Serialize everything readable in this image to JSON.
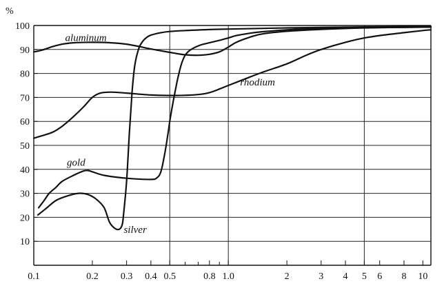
{
  "chart_data": {
    "type": "line",
    "title": "",
    "xlabel": "",
    "ylabel": "%",
    "x_scale": "log",
    "xlim": [
      0.1,
      11
    ],
    "ylim": [
      0,
      100
    ],
    "grid": {
      "horizontal": true,
      "vertical_at": [
        0.5,
        1.0,
        5
      ]
    },
    "x_ticks": [
      {
        "value": 0.1,
        "label": "0.1"
      },
      {
        "value": 0.2,
        "label": "0.2"
      },
      {
        "value": 0.3,
        "label": "0.3"
      },
      {
        "value": 0.4,
        "label": "0.4"
      },
      {
        "value": 0.5,
        "label": "0.5"
      },
      {
        "value": 0.8,
        "label": "0.8"
      },
      {
        "value": 1.0,
        "label": "1.0"
      },
      {
        "value": 2,
        "label": "2"
      },
      {
        "value": 3,
        "label": "3"
      },
      {
        "value": 4,
        "label": "4"
      },
      {
        "value": 5,
        "label": "5"
      },
      {
        "value": 6,
        "label": "6"
      },
      {
        "value": 8,
        "label": "8"
      },
      {
        "value": 10,
        "label": "10"
      }
    ],
    "x_minor_ticks": [
      0.6,
      0.7,
      0.9
    ],
    "y_ticks": [
      {
        "value": 10,
        "label": "10"
      },
      {
        "value": 20,
        "label": "20"
      },
      {
        "value": 30,
        "label": "30"
      },
      {
        "value": 40,
        "label": "40"
      },
      {
        "value": 50,
        "label": "50"
      },
      {
        "value": 60,
        "label": "60"
      },
      {
        "value": 70,
        "label": "70"
      },
      {
        "value": 80,
        "label": "80"
      },
      {
        "value": 90,
        "label": "90"
      },
      {
        "value": 100,
        "label": "100"
      }
    ],
    "series": [
      {
        "name": "aluminum",
        "label_at": {
          "x": 0.145,
          "y": 93.5
        },
        "points": [
          [
            0.1,
            89
          ],
          [
            0.11,
            89.7
          ],
          [
            0.125,
            91.2
          ],
          [
            0.14,
            92.2
          ],
          [
            0.16,
            92.8
          ],
          [
            0.2,
            93
          ],
          [
            0.25,
            92.8
          ],
          [
            0.3,
            92.2
          ],
          [
            0.35,
            91.2
          ],
          [
            0.4,
            90.2
          ],
          [
            0.5,
            88.8
          ],
          [
            0.6,
            87.8
          ],
          [
            0.7,
            87.6
          ],
          [
            0.8,
            88
          ],
          [
            0.9,
            89
          ],
          [
            1.0,
            91
          ],
          [
            1.1,
            93
          ],
          [
            1.3,
            95.2
          ],
          [
            1.5,
            96.5
          ],
          [
            2,
            97.6
          ],
          [
            3,
            98.4
          ],
          [
            5,
            99
          ],
          [
            10,
            99.3
          ],
          [
            11,
            99.3
          ]
        ]
      },
      {
        "name": "rhodium",
        "label_at": {
          "x": 1.15,
          "y": 75
        },
        "points": [
          [
            0.1,
            53
          ],
          [
            0.11,
            54
          ],
          [
            0.125,
            55.5
          ],
          [
            0.14,
            58
          ],
          [
            0.16,
            62
          ],
          [
            0.18,
            66
          ],
          [
            0.2,
            70
          ],
          [
            0.22,
            71.8
          ],
          [
            0.25,
            72.2
          ],
          [
            0.3,
            71.8
          ],
          [
            0.4,
            71
          ],
          [
            0.5,
            70.8
          ],
          [
            0.6,
            70.9
          ],
          [
            0.7,
            71.2
          ],
          [
            0.8,
            72
          ],
          [
            0.9,
            73.5
          ],
          [
            1.0,
            75
          ],
          [
            1.2,
            77.5
          ],
          [
            1.5,
            80.5
          ],
          [
            2,
            84
          ],
          [
            2.5,
            87.5
          ],
          [
            3,
            90
          ],
          [
            4,
            93
          ],
          [
            5,
            94.8
          ],
          [
            6,
            95.8
          ],
          [
            8,
            97
          ],
          [
            10,
            97.9
          ],
          [
            11,
            98.2
          ]
        ]
      },
      {
        "name": "gold",
        "label_at": {
          "x": 0.148,
          "y": 41.5
        },
        "points": [
          [
            0.106,
            24
          ],
          [
            0.113,
            27
          ],
          [
            0.12,
            30
          ],
          [
            0.13,
            32.5
          ],
          [
            0.14,
            35
          ],
          [
            0.16,
            37.5
          ],
          [
            0.18,
            39.3
          ],
          [
            0.19,
            39.5
          ],
          [
            0.2,
            39
          ],
          [
            0.23,
            37.5
          ],
          [
            0.3,
            36.3
          ],
          [
            0.4,
            35.8
          ],
          [
            0.43,
            36.5
          ],
          [
            0.45,
            39
          ],
          [
            0.47,
            46
          ],
          [
            0.49,
            55
          ],
          [
            0.5,
            60
          ],
          [
            0.52,
            68
          ],
          [
            0.55,
            78
          ],
          [
            0.58,
            85
          ],
          [
            0.62,
            89
          ],
          [
            0.7,
            91.5
          ],
          [
            0.8,
            92.8
          ],
          [
            0.9,
            93.8
          ],
          [
            1.0,
            94.8
          ],
          [
            1.1,
            95.8
          ],
          [
            1.3,
            96.8
          ],
          [
            1.5,
            97.4
          ],
          [
            2,
            98.2
          ],
          [
            3,
            98.8
          ],
          [
            5,
            99.1
          ],
          [
            10,
            99.3
          ],
          [
            11,
            99.3
          ]
        ]
      },
      {
        "name": "silver",
        "label_at": {
          "x": 0.29,
          "y": 13.5
        },
        "points": [
          [
            0.105,
            21
          ],
          [
            0.115,
            23.5
          ],
          [
            0.13,
            27
          ],
          [
            0.15,
            29
          ],
          [
            0.17,
            30
          ],
          [
            0.19,
            29.5
          ],
          [
            0.21,
            27.5
          ],
          [
            0.23,
            24
          ],
          [
            0.245,
            18
          ],
          [
            0.26,
            15.5
          ],
          [
            0.275,
            15
          ],
          [
            0.285,
            17
          ],
          [
            0.29,
            22
          ],
          [
            0.3,
            35
          ],
          [
            0.31,
            55
          ],
          [
            0.32,
            72
          ],
          [
            0.33,
            83
          ],
          [
            0.345,
            90
          ],
          [
            0.36,
            93
          ],
          [
            0.38,
            95
          ],
          [
            0.4,
            96
          ],
          [
            0.45,
            97
          ],
          [
            0.5,
            97.5
          ],
          [
            0.6,
            97.9
          ],
          [
            0.8,
            98.3
          ],
          [
            1.0,
            98.5
          ],
          [
            2,
            99
          ],
          [
            5,
            99.4
          ],
          [
            10,
            99.6
          ],
          [
            11,
            99.6
          ]
        ]
      }
    ]
  }
}
